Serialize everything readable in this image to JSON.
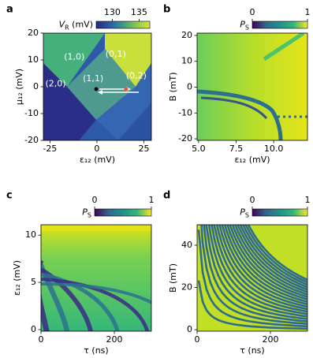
{
  "chart_data": [
    {
      "type": "heatmap",
      "label": "a",
      "xlabel": "ε₁₂ (mV)",
      "ylabel": "μ₁₂ (mV)",
      "xlim": [
        -28.5,
        29
      ],
      "ylim": [
        -20,
        20
      ],
      "xticks": [
        -25,
        0,
        25
      ],
      "yticks": [
        -20,
        -10,
        0,
        10,
        20
      ],
      "colorbar": {
        "label": {
          "symbol": "V",
          "subscript": "R",
          "unit": " (mV)"
        },
        "lim": [
          127,
          137
        ],
        "ticks": [
          130,
          135
        ],
        "colormap": [
          "#262a80",
          "#2d59a8",
          "#3d9a8a",
          "#8cc84a",
          "#d6e23a"
        ]
      },
      "annotations": [
        {
          "text": "(1,0)",
          "x": -12,
          "y": 11
        },
        {
          "text": "(0,1)",
          "x": 10,
          "y": 12
        },
        {
          "text": "(2,0)",
          "x": -22,
          "y": 1
        },
        {
          "text": "(1,1)",
          "x": -2,
          "y": 3
        },
        {
          "text": "(0,2)",
          "x": 21,
          "y": 4
        }
      ]
    },
    {
      "type": "heatmap",
      "label": "b",
      "xlabel": "ε₁₂ (mV)",
      "ylabel": "B (mT)",
      "xlim": [
        4.9,
        12.25
      ],
      "ylim": [
        -20.6,
        20.9
      ],
      "xticks": [
        {
          "value": 5,
          "label": "5.0"
        },
        {
          "value": 7.5,
          "label": "7.5"
        },
        {
          "value": 10,
          "label": "10.0"
        }
      ],
      "yticks": [
        -20,
        -10,
        0,
        10,
        20
      ],
      "colorbar": {
        "label": {
          "symbol": "P",
          "subscript": "S",
          "unit": ""
        },
        "lim": [
          0,
          1
        ],
        "ticks": [
          0,
          1
        ],
        "colormap": [
          "#440154",
          "#31688e",
          "#21918c",
          "#35b779",
          "#fde725"
        ]
      }
    },
    {
      "type": "heatmap",
      "label": "c",
      "xlabel": "τ (ns)",
      "ylabel": "ε₁₂ (mV)",
      "xlim": [
        0,
        301
      ],
      "ylim": [
        -0.17,
        11.1
      ],
      "xticks": [
        0,
        200
      ],
      "yticks": [
        0,
        5,
        10
      ],
      "colorbar": {
        "label": {
          "symbol": "P",
          "subscript": "S",
          "unit": ""
        },
        "lim": [
          0,
          1
        ],
        "ticks": [
          0,
          1
        ],
        "colormap": [
          "#440154",
          "#31688e",
          "#21918c",
          "#35b779",
          "#fde725"
        ]
      }
    },
    {
      "type": "heatmap",
      "label": "d",
      "xlabel": "τ (ns)",
      "ylabel": "B (mT)",
      "xlim": [
        0,
        301
      ],
      "ylim": [
        -0.7,
        49.7
      ],
      "xticks": [
        0,
        200
      ],
      "yticks": [
        0,
        20,
        40
      ],
      "colorbar": {
        "label": {
          "symbol": "P",
          "subscript": "S",
          "unit": ""
        },
        "lim": [
          0,
          1
        ],
        "ticks": [
          0,
          1
        ],
        "colormap": [
          "#440154",
          "#31688e",
          "#21918c",
          "#35b779",
          "#fde725"
        ]
      }
    }
  ]
}
